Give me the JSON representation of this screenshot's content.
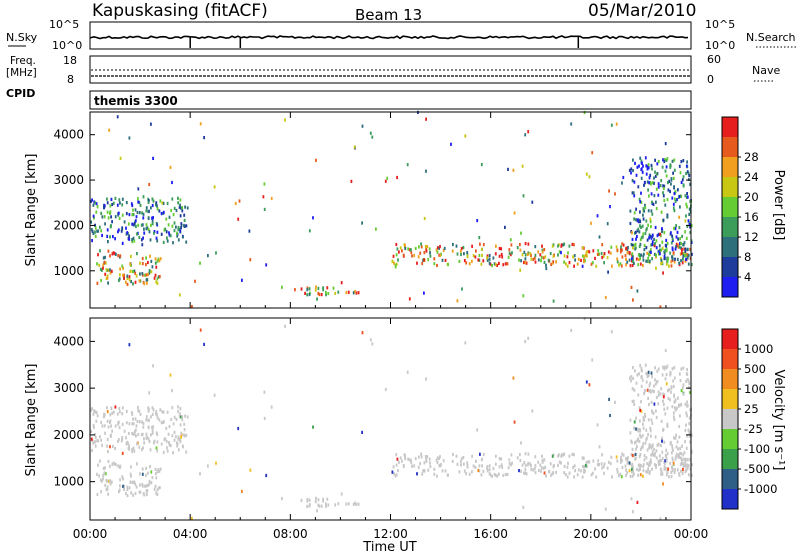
{
  "header": {
    "station": "Kapuskasing (fitACF)",
    "beam": "Beam 13",
    "date": "05/Mar/2010"
  },
  "panels": {
    "nsky_label": "N.Sky",
    "nsearch_label": "N.Search",
    "freq_label_1": "Freq.",
    "freq_label_2": "[MHz]",
    "nave_label": "Nave",
    "cpid_label": "CPID",
    "cpid_value": "themis 3300",
    "noise_left_ticks": [
      "10^5",
      "10^0"
    ],
    "noise_right_ticks": [
      "10^5",
      "10^0"
    ],
    "freq_left_ticks": [
      "18",
      "8"
    ],
    "freq_right_ticks": [
      "60",
      "0"
    ]
  },
  "colors": {
    "power": [
      "#1e1ef0",
      "#1e3c9c",
      "#2e6f7c",
      "#3c9c5a",
      "#66cc33",
      "#c8c814",
      "#f0a01e",
      "#e65a1e",
      "#e61e1e"
    ],
    "velocity": [
      "#2030c8",
      "#2f5e86",
      "#3aa04a",
      "#66cc33",
      "#c8c8c8",
      "#f0c020",
      "#f08c20",
      "#f05020",
      "#e61e1e"
    ],
    "grey": "#c8c8c8"
  },
  "chart_data": [
    {
      "type": "heatmap",
      "name": "power-panel",
      "title": "",
      "xlabel": "Time UT",
      "ylabel": "Slant Range [km]",
      "xlim": [
        0,
        24
      ],
      "ylim": [
        180,
        4500
      ],
      "x_ticks": [
        "00:00",
        "04:00",
        "08:00",
        "12:00",
        "16:00",
        "20:00",
        "00:00"
      ],
      "y_ticks": [
        1000,
        2000,
        3000,
        4000
      ],
      "colorbar": {
        "label": "Power [dB]",
        "ticks": [
          4,
          8,
          12,
          16,
          20,
          24,
          28
        ],
        "range": [
          0,
          30
        ]
      },
      "echo_regions": [
        {
          "t": [
            0.0,
            3.9
          ],
          "r": [
            1600,
            2600
          ],
          "level": "medium"
        },
        {
          "t": [
            0.2,
            2.8
          ],
          "r": [
            700,
            1400
          ],
          "level": "high"
        },
        {
          "t": [
            8.3,
            10.8
          ],
          "r": [
            450,
            650
          ],
          "level": "high"
        },
        {
          "t": [
            12.0,
            24.0
          ],
          "r": [
            1100,
            1600
          ],
          "level": "high"
        },
        {
          "t": [
            21.5,
            24.0
          ],
          "r": [
            1200,
            3500
          ],
          "level": "medium"
        }
      ]
    },
    {
      "type": "heatmap",
      "name": "velocity-panel",
      "title": "",
      "xlabel": "Time UT",
      "ylabel": "Slant Range [km]",
      "xlim": [
        0,
        24
      ],
      "ylim": [
        180,
        4500
      ],
      "x_ticks": [
        "00:00",
        "04:00",
        "08:00",
        "12:00",
        "16:00",
        "20:00",
        "00:00"
      ],
      "y_ticks": [
        1000,
        2000,
        3000,
        4000
      ],
      "colorbar": {
        "label": "Velocity [m s⁻¹]",
        "ticks": [
          "1000",
          "500",
          "100",
          "25",
          "-25",
          "-100",
          "-500",
          "-1000"
        ]
      },
      "note": "mostly ground scatter (grey)"
    }
  ]
}
